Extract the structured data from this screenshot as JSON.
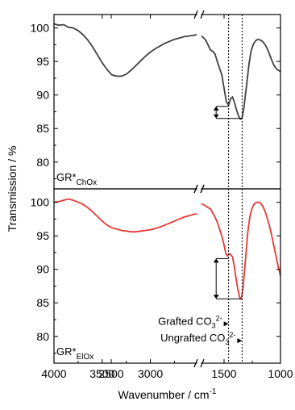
{
  "chart_data": [
    {
      "type": "line",
      "panel_label": "GR*",
      "panel_label_sub": "ChOx",
      "xlabel": "Wavenumber / cm",
      "xlabel_sup": "-1",
      "ylabel": "Transmission / %",
      "xlim": [
        4000,
        1000
      ],
      "x_break": [
        1700,
        1650
      ],
      "ylim": [
        76,
        102
      ],
      "yticks": [
        80,
        85,
        90,
        95,
        100
      ],
      "xticks": [
        4000,
        3500,
        3000,
        2500,
        1500,
        1000
      ],
      "reference_lines_x": [
        1460,
        1340
      ],
      "annotation": {
        "type": "double-arrow",
        "x": 1570,
        "y_top": 88.3,
        "y_bottom": 86.5
      },
      "series": [
        {
          "color": "#404040",
          "segments": [
            [
              [
                4000,
                100.6
              ],
              [
                3950,
                100.4
              ],
              [
                3900,
                100.5
              ],
              [
                3850,
                100.1
              ],
              [
                3800,
                100.0
              ],
              [
                3750,
                99.6
              ],
              [
                3700,
                99.0
              ],
              [
                3650,
                98.2
              ],
              [
                3600,
                97.2
              ],
              [
                3550,
                96.0
              ],
              [
                3500,
                94.8
              ],
              [
                3450,
                93.8
              ],
              [
                3400,
                93.0
              ],
              [
                3350,
                92.8
              ],
              [
                3300,
                92.8
              ],
              [
                3250,
                93.1
              ],
              [
                3200,
                93.7
              ],
              [
                3150,
                94.4
              ],
              [
                3100,
                95.1
              ],
              [
                3050,
                95.8
              ],
              [
                3000,
                96.4
              ],
              [
                2950,
                96.9
              ],
              [
                2900,
                97.3
              ],
              [
                2850,
                97.7
              ],
              [
                2800,
                98.0
              ],
              [
                2750,
                98.3
              ],
              [
                2700,
                98.5
              ],
              [
                2650,
                98.7
              ],
              [
                2600,
                98.8
              ],
              [
                2550,
                98.9
              ],
              [
                2520,
                99.0
              ]
            ],
            [
              [
                1700,
                98.8
              ],
              [
                1680,
                98.5
              ],
              [
                1660,
                98.1
              ],
              [
                1640,
                97.4
              ],
              [
                1620,
                96.7
              ],
              [
                1600,
                96.5
              ],
              [
                1580,
                96.1
              ],
              [
                1560,
                95.0
              ],
              [
                1540,
                94.0
              ],
              [
                1520,
                93.0
              ],
              [
                1500,
                91.0
              ],
              [
                1480,
                89.0
              ],
              [
                1460,
                88.5
              ],
              [
                1440,
                89.5
              ],
              [
                1425,
                89.7
              ],
              [
                1410,
                89.0
              ],
              [
                1390,
                87.8
              ],
              [
                1370,
                86.8
              ],
              [
                1355,
                86.4
              ],
              [
                1340,
                86.6
              ],
              [
                1325,
                88.0
              ],
              [
                1300,
                91.5
              ],
              [
                1280,
                94.5
              ],
              [
                1260,
                96.6
              ],
              [
                1240,
                97.6
              ],
              [
                1220,
                98.1
              ],
              [
                1200,
                98.3
              ],
              [
                1180,
                98.2
              ],
              [
                1160,
                98.0
              ],
              [
                1140,
                97.6
              ],
              [
                1120,
                97.0
              ],
              [
                1100,
                96.2
              ],
              [
                1080,
                95.3
              ],
              [
                1060,
                94.5
              ],
              [
                1040,
                94.0
              ],
              [
                1020,
                93.7
              ],
              [
                1000,
                93.5
              ]
            ]
          ]
        }
      ]
    },
    {
      "type": "line",
      "panel_label": "GR*",
      "panel_label_sub": "ElOx",
      "xlim": [
        4000,
        1000
      ],
      "x_break": [
        1700,
        1650
      ],
      "ylim": [
        76,
        102
      ],
      "yticks": [
        80,
        85,
        90,
        95,
        100
      ],
      "reference_lines_x": [
        1460,
        1340
      ],
      "annotation": {
        "type": "double-arrow",
        "x": 1570,
        "y_top": 91.6,
        "y_bottom": 85.6
      },
      "text_annotations": [
        {
          "text": "Grafted CO",
          "sub": "3",
          "sup": "2-",
          "x": 1460,
          "y": 81.5
        },
        {
          "text": "Ungrafted CO",
          "sub": "3",
          "sup": "2-",
          "x": 1340,
          "y": 79.0
        }
      ],
      "series": [
        {
          "color": "#e53935",
          "segments": [
            [
              [
                4000,
                100.0
              ],
              [
                3950,
                100.1
              ],
              [
                3900,
                100.3
              ],
              [
                3850,
                100.5
              ],
              [
                3800,
                100.3
              ],
              [
                3750,
                100.0
              ],
              [
                3700,
                99.7
              ],
              [
                3650,
                99.2
              ],
              [
                3600,
                98.6
              ],
              [
                3550,
                97.9
              ],
              [
                3500,
                97.2
              ],
              [
                3450,
                96.6
              ],
              [
                3400,
                96.2
              ],
              [
                3350,
                96.0
              ],
              [
                3300,
                95.8
              ],
              [
                3250,
                95.7
              ],
              [
                3200,
                95.6
              ],
              [
                3150,
                95.6
              ],
              [
                3100,
                95.7
              ],
              [
                3050,
                95.8
              ],
              [
                3000,
                95.9
              ],
              [
                2950,
                96.1
              ],
              [
                2900,
                96.3
              ],
              [
                2850,
                96.6
              ],
              [
                2800,
                96.9
              ],
              [
                2750,
                97.2
              ],
              [
                2700,
                97.5
              ],
              [
                2650,
                97.8
              ],
              [
                2600,
                98.0
              ],
              [
                2550,
                98.2
              ],
              [
                2520,
                98.3
              ]
            ],
            [
              [
                1700,
                99.8
              ],
              [
                1680,
                99.6
              ],
              [
                1660,
                99.4
              ],
              [
                1640,
                99.2
              ],
              [
                1620,
                99.0
              ],
              [
                1600,
                98.4
              ],
              [
                1580,
                97.8
              ],
              [
                1560,
                97.0
              ],
              [
                1540,
                96.0
              ],
              [
                1520,
                95.0
              ],
              [
                1500,
                93.6
              ],
              [
                1485,
                92.4
              ],
              [
                1470,
                92.0
              ],
              [
                1455,
                92.3
              ],
              [
                1440,
                92.2
              ],
              [
                1425,
                91.8
              ],
              [
                1410,
                90.5
              ],
              [
                1395,
                88.8
              ],
              [
                1380,
                87.2
              ],
              [
                1365,
                86.0
              ],
              [
                1355,
                85.6
              ],
              [
                1345,
                85.8
              ],
              [
                1330,
                87.5
              ],
              [
                1310,
                91.5
              ],
              [
                1290,
                95.5
              ],
              [
                1270,
                98.0
              ],
              [
                1250,
                99.2
              ],
              [
                1230,
                99.8
              ],
              [
                1210,
                100.0
              ],
              [
                1195,
                100.0
              ],
              [
                1180,
                99.9
              ],
              [
                1160,
                99.5
              ],
              [
                1140,
                98.8
              ],
              [
                1120,
                97.8
              ],
              [
                1100,
                96.6
              ],
              [
                1080,
                95.2
              ],
              [
                1060,
                93.6
              ],
              [
                1040,
                92.0
              ],
              [
                1020,
                90.4
              ],
              [
                1000,
                89.0
              ]
            ]
          ]
        }
      ]
    }
  ]
}
